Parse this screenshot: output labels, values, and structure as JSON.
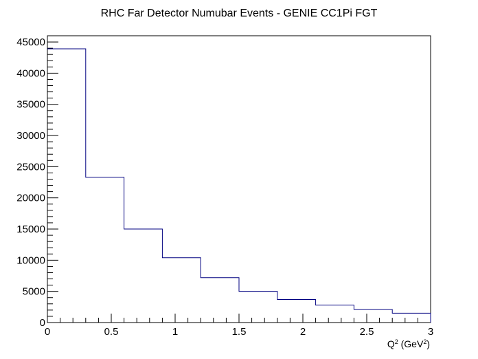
{
  "chart_data": {
    "type": "histogram",
    "title": "RHC Far Detector Numubar Events - GENIE CC1Pi FGT",
    "xlabel": "Q² (GeV²)",
    "ylabel": "",
    "xlim": [
      0,
      3
    ],
    "ylim": [
      0,
      46000
    ],
    "bin_edges": [
      0,
      0.3,
      0.6,
      0.9,
      1.2,
      1.5,
      1.8,
      2.1,
      2.4,
      2.7,
      3.0
    ],
    "values": [
      43900,
      23300,
      15000,
      10400,
      7200,
      5000,
      3700,
      2800,
      2100,
      1500
    ],
    "x_ticks": [
      "0",
      "0.5",
      "1",
      "1.5",
      "2",
      "2.5",
      "3"
    ],
    "y_ticks": [
      "0",
      "5000",
      "10000",
      "15000",
      "20000",
      "25000",
      "30000",
      "35000",
      "40000",
      "45000"
    ],
    "line_color": "#000080",
    "grid": false,
    "legend": "none"
  }
}
